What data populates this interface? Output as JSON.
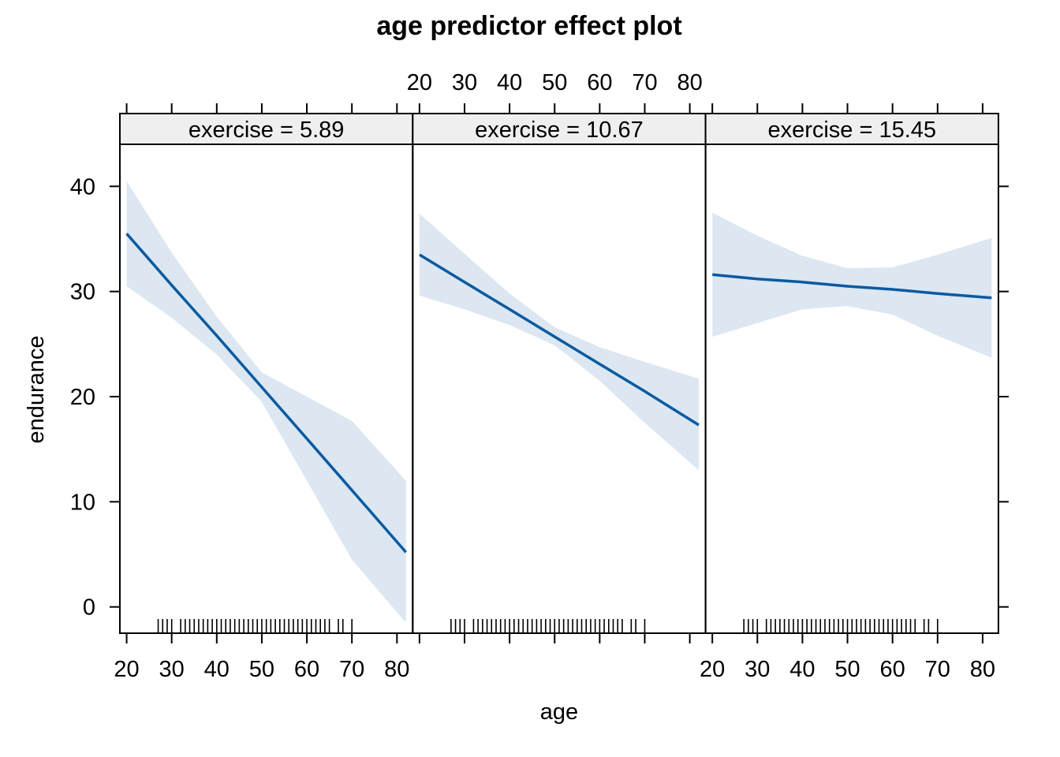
{
  "chart_data": {
    "type": "line",
    "title": "age predictor effect plot",
    "xlabel": "age",
    "ylabel": "endurance",
    "xlim": [
      18.5,
      83.5
    ],
    "ylim": [
      -2.5,
      44
    ],
    "x_ticks": [
      20,
      30,
      40,
      50,
      60,
      70,
      80
    ],
    "y_ticks": [
      0,
      10,
      20,
      30,
      40
    ],
    "grid": false,
    "legend": "none",
    "colors": {
      "line": "#0b5aa0",
      "band": "#dce7f2",
      "strip_bg": "#efefef",
      "axis": "#000000"
    },
    "panels": [
      {
        "strip_label": "exercise = 5.89",
        "x": [
          20,
          30,
          40,
          50,
          60,
          70,
          82
        ],
        "fit": [
          35.5,
          30.6,
          25.8,
          20.9,
          16.0,
          11.1,
          5.2
        ],
        "lower": [
          30.5,
          27.5,
          24.0,
          19.5,
          12.0,
          4.5,
          -1.5
        ],
        "upper": [
          40.5,
          33.7,
          27.6,
          22.3,
          20.0,
          17.7,
          12.0
        ]
      },
      {
        "strip_label": "exercise = 10.67",
        "x": [
          20,
          30,
          40,
          50,
          60,
          70,
          82
        ],
        "fit": [
          33.5,
          30.9,
          28.3,
          25.7,
          23.1,
          20.5,
          17.3
        ],
        "lower": [
          29.6,
          28.3,
          26.8,
          24.9,
          21.5,
          17.5,
          13.0
        ],
        "upper": [
          37.4,
          33.6,
          29.8,
          26.6,
          24.7,
          23.3,
          21.7
        ]
      },
      {
        "strip_label": "exercise = 15.45",
        "x": [
          20,
          30,
          40,
          50,
          60,
          70,
          82
        ],
        "fit": [
          31.6,
          31.2,
          30.9,
          30.5,
          30.2,
          29.8,
          29.4
        ],
        "lower": [
          25.7,
          27.0,
          28.3,
          28.6,
          27.8,
          25.8,
          23.7
        ],
        "upper": [
          37.5,
          35.3,
          33.4,
          32.2,
          32.3,
          33.5,
          35.1
        ]
      }
    ],
    "rug_ages": [
      27,
      28,
      29,
      30,
      32,
      33,
      34,
      35,
      36,
      37,
      38,
      39,
      40,
      41,
      42,
      43,
      44,
      45,
      46,
      47,
      48,
      49,
      50,
      51,
      52,
      53,
      54,
      55,
      56,
      57,
      58,
      59,
      60,
      61,
      62,
      63,
      64,
      65,
      67,
      68,
      70
    ]
  }
}
